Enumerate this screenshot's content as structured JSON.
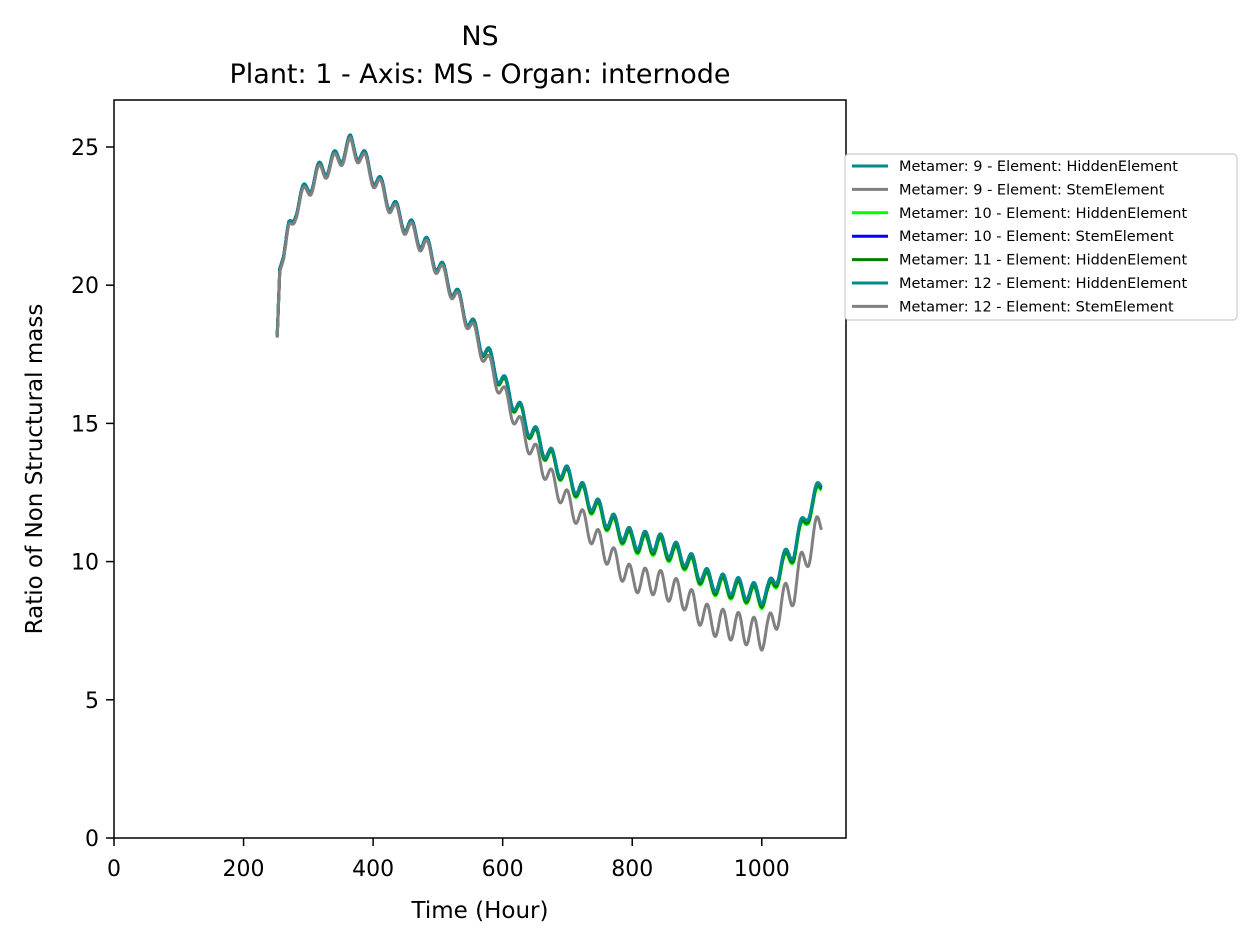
{
  "chart_data": {
    "type": "line",
    "title": "NS",
    "subtitle": "Plant: 1 - Axis: MS - Organ: internode",
    "xlabel": "Time (Hour)",
    "ylabel": "Ratio of Non Structural mass",
    "xlim": [
      0,
      1130
    ],
    "ylim": [
      0,
      26.7
    ],
    "xticks": [
      0,
      200,
      400,
      600,
      800,
      1000
    ],
    "yticks": [
      0,
      5,
      10,
      15,
      20,
      25
    ],
    "xtick_labels": [
      "0",
      "200",
      "400",
      "600",
      "800",
      "1000"
    ],
    "ytick_labels": [
      "0",
      "5",
      "10",
      "15",
      "20",
      "25"
    ],
    "grid": false,
    "legend_position": "outside-right",
    "base_curve": {
      "x": [
        252,
        256,
        260,
        265,
        270,
        280,
        300,
        320,
        340,
        365,
        380,
        400,
        440,
        480,
        520,
        560,
        600,
        640,
        680,
        720,
        760,
        800,
        840,
        880,
        920,
        960,
        1000,
        1010,
        1030,
        1050,
        1070,
        1080,
        1092
      ],
      "y": [
        18.2,
        20.6,
        20.9,
        21.3,
        22.0,
        22.8,
        23.6,
        24.2,
        24.5,
        25.1,
        24.8,
        24.0,
        22.5,
        21.5,
        20.0,
        18.2,
        16.5,
        14.9,
        13.6,
        12.6,
        11.6,
        10.8,
        10.7,
        10.2,
        9.3,
        9.1,
        8.8,
        8.9,
        9.9,
        10.5,
        11.8,
        12.2,
        12.9
      ]
    },
    "series": [
      {
        "name": "Metamer: 9 - Element: HiddenElement",
        "color": "#008b8b",
        "offset_early": 0.0,
        "offset_late": 0.0,
        "x_start": 252
      },
      {
        "name": "Metamer: 9 - Element: StemElement",
        "color": "#808080",
        "offset_early": 0.0,
        "offset_late": 0.0,
        "x_start": 252
      },
      {
        "name": "Metamer: 10 - Element: HiddenElement",
        "color": "#00ff00",
        "offset_early": -0.05,
        "offset_late": -0.15,
        "x_start": 252
      },
      {
        "name": "Metamer: 10 - Element: StemElement",
        "color": "#0000ff",
        "offset_early": 0.0,
        "offset_late": -0.05,
        "x_start": 252
      },
      {
        "name": "Metamer: 11 - Element: HiddenElement",
        "color": "#008000",
        "offset_early": -0.05,
        "offset_late": -0.1,
        "x_start": 252
      },
      {
        "name": "Metamer: 12 - Element: HiddenElement",
        "color": "#008b8b",
        "offset_early": 0.0,
        "offset_late": 0.0,
        "x_start": 252
      },
      {
        "name": "Metamer: 12 - Element: StemElement",
        "color": "#808080",
        "offset_early": -0.1,
        "offset_late": -1.45,
        "x_start": 252
      }
    ],
    "oscillation": {
      "period_hours": 24,
      "amplitude": 0.35
    }
  }
}
